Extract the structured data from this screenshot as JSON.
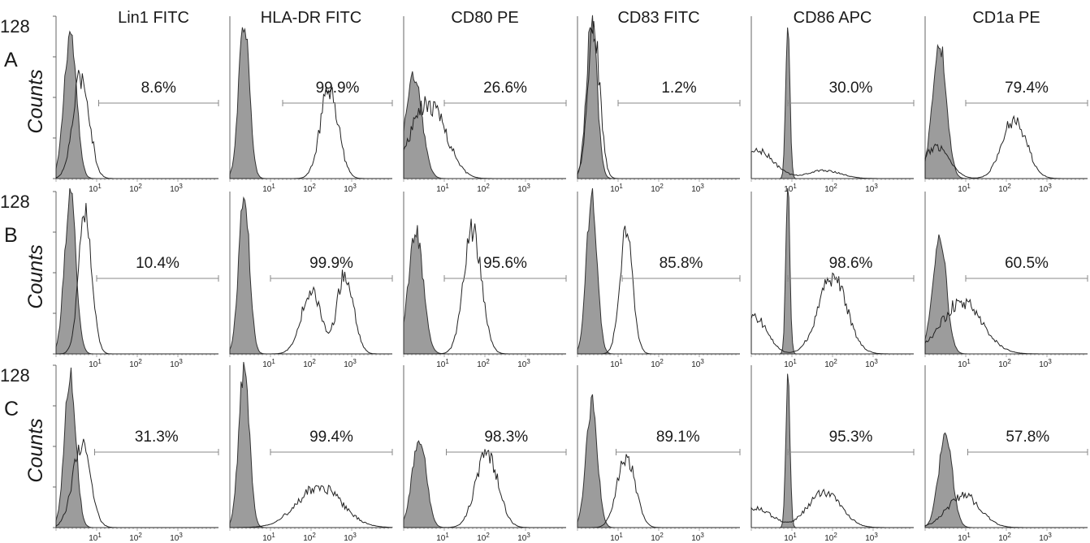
{
  "chart_data": {
    "type": "histogram-grid",
    "ylabel": "Counts",
    "y_max_label": "128",
    "row_labels": [
      "A",
      "B",
      "C"
    ],
    "columns": [
      "Lin1  FITC",
      "HLA-DR FITC",
      "CD80 PE",
      "CD83  FITC",
      "CD86 APC",
      "CD1a  PE"
    ],
    "x_tick_labels": [
      {
        "base": "10",
        "exp": "1"
      },
      {
        "base": "10",
        "exp": "2"
      },
      {
        "base": "10",
        "exp": "3"
      }
    ],
    "percentages": [
      [
        "8.6%",
        "99.9%",
        "26.6%",
        "1.2%",
        "30.0%",
        "79.4%"
      ],
      [
        "10.4%",
        "99.9%",
        "95.6%",
        "85.8%",
        "98.6%",
        "60.5%"
      ],
      [
        "31.3%",
        "99.4%",
        "98.3%",
        "89.1%",
        "95.3%",
        "57.8%"
      ]
    ],
    "gate_start": [
      [
        1.05,
        1.3,
        1.0,
        1.0,
        0.9,
        1.0
      ],
      [
        1.0,
        1.0,
        1.0,
        1.1,
        0.9,
        1.0
      ],
      [
        0.95,
        1.0,
        1.05,
        0.95,
        0.9,
        1.05
      ]
    ],
    "peaks": [
      [
        {
          "filled": [
            [
              0.35,
              0.9,
              0.15
            ]
          ],
          "open": [
            [
              0.62,
              0.63,
              0.2
            ]
          ]
        },
        {
          "filled": [
            [
              0.35,
              0.98,
              0.13
            ]
          ],
          "open": [
            [
              2.45,
              0.56,
              0.22
            ]
          ]
        },
        {
          "filled": [
            [
              0.25,
              0.62,
              0.2
            ]
          ],
          "open": [
            [
              0.4,
              0.3,
              0.35
            ],
            [
              0.85,
              0.26,
              0.35
            ]
          ]
        },
        {
          "filled": [
            [
              0.35,
              0.98,
              0.13
            ]
          ],
          "open": [
            [
              0.4,
              0.9,
              0.15
            ]
          ]
        },
        {
          "filled": [
            [
              0.9,
              1.0,
              0.05
            ]
          ],
          "open": [
            [
              0.15,
              0.17,
              0.4
            ],
            [
              1.8,
              0.05,
              0.4
            ]
          ]
        },
        {
          "filled": [
            [
              0.35,
              0.85,
              0.17
            ]
          ],
          "open": [
            [
              0.3,
              0.2,
              0.3
            ],
            [
              2.2,
              0.37,
              0.3
            ]
          ]
        }
      ],
      [
        {
          "filled": [
            [
              0.35,
              0.98,
              0.14
            ]
          ],
          "open": [
            [
              0.72,
              0.91,
              0.16
            ]
          ]
        },
        {
          "filled": [
            [
              0.35,
              0.98,
              0.13
            ]
          ],
          "open": [
            [
              2.0,
              0.38,
              0.25
            ],
            [
              2.85,
              0.5,
              0.2
            ]
          ]
        },
        {
          "filled": [
            [
              0.3,
              0.75,
              0.18
            ]
          ],
          "open": [
            [
              1.7,
              0.75,
              0.22
            ]
          ]
        },
        {
          "filled": [
            [
              0.35,
              0.97,
              0.13
            ]
          ],
          "open": [
            [
              1.2,
              0.72,
              0.16
            ]
          ]
        },
        {
          "filled": [
            [
              0.9,
              1.0,
              0.05
            ]
          ],
          "open": [
            [
              0.1,
              0.22,
              0.3
            ],
            [
              2.0,
              0.47,
              0.35
            ]
          ]
        },
        {
          "filled": [
            [
              0.35,
              0.73,
              0.17
            ]
          ],
          "open": [
            [
              0.9,
              0.32,
              0.5
            ]
          ]
        }
      ],
      [
        {
          "filled": [
            [
              0.35,
              0.95,
              0.14
            ]
          ],
          "open": [
            [
              0.62,
              0.5,
              0.22
            ]
          ]
        },
        {
          "filled": [
            [
              0.35,
              0.98,
              0.13
            ]
          ],
          "open": [
            [
              2.2,
              0.25,
              0.55
            ]
          ]
        },
        {
          "filled": [
            [
              0.38,
              0.56,
              0.17
            ]
          ],
          "open": [
            [
              2.05,
              0.47,
              0.27
            ]
          ]
        },
        {
          "filled": [
            [
              0.35,
              0.76,
              0.14
            ]
          ],
          "open": [
            [
              1.2,
              0.45,
              0.22
            ]
          ]
        },
        {
          "filled": [
            [
              0.9,
              0.96,
              0.05
            ]
          ],
          "open": [
            [
              0.1,
              0.12,
              0.4
            ],
            [
              1.8,
              0.22,
              0.4
            ]
          ]
        },
        {
          "filled": [
            [
              0.5,
              0.56,
              0.17
            ]
          ],
          "open": [
            [
              0.95,
              0.2,
              0.4
            ]
          ]
        }
      ]
    ]
  }
}
